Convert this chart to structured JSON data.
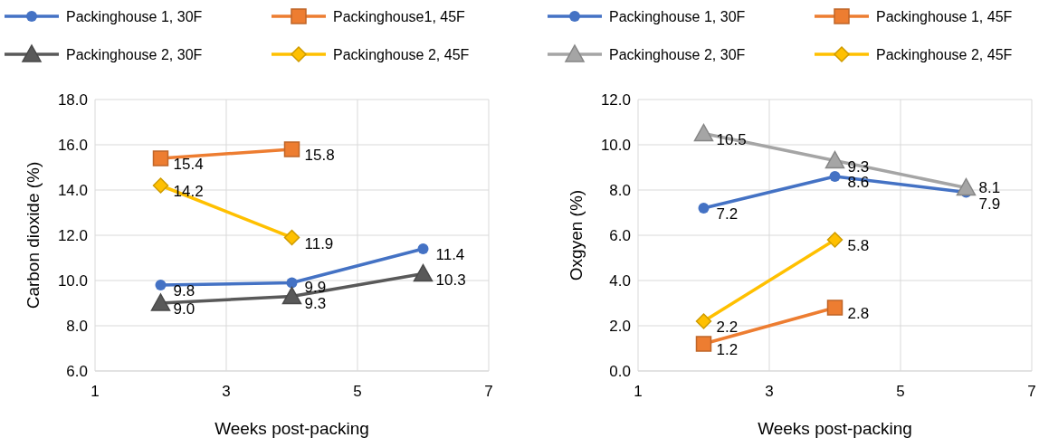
{
  "chart_data": [
    {
      "type": "line",
      "xlabel": "Weeks post-packing",
      "ylabel": "Carbon dioxide (%)",
      "xlim": [
        1,
        7
      ],
      "xticks": [
        1,
        3,
        5,
        7
      ],
      "ylim": [
        6,
        18
      ],
      "yticks": [
        {
          "value": 6,
          "label": "6.0"
        },
        {
          "value": 8,
          "label": "8.0"
        },
        {
          "value": 10,
          "label": "10.0"
        },
        {
          "value": 12,
          "label": "12.0"
        },
        {
          "value": 14,
          "label": "14.0"
        },
        {
          "value": 16,
          "label": "16.0"
        },
        {
          "value": 18,
          "label": "18.0"
        }
      ],
      "grid": true,
      "legend": "top",
      "data_labels": true,
      "series": [
        {
          "name": "Packinghouse 1, 30F",
          "color": "#4472c4",
          "marker": "circle",
          "x": [
            2,
            4,
            6
          ],
          "values": [
            9.8,
            9.9,
            11.4
          ]
        },
        {
          "name": "Packinghouse1, 45F",
          "color": "#ed7d31",
          "marker": "square",
          "x": [
            2,
            4
          ],
          "values": [
            15.4,
            15.8
          ]
        },
        {
          "name": "Packinghouse 2, 30F",
          "color": "#595959",
          "marker": "triangle",
          "x": [
            2,
            4,
            6
          ],
          "values": [
            9.0,
            9.3,
            10.3
          ],
          "value_labels": [
            "9.0",
            "9.3",
            "10.3"
          ]
        },
        {
          "name": "Packinghouse 2, 45F",
          "color": "#ffc000",
          "marker": "diamond",
          "x": [
            2,
            4
          ],
          "values": [
            14.2,
            11.9
          ]
        }
      ]
    },
    {
      "type": "line",
      "xlabel": "Weeks post-packing",
      "ylabel": "Oxgyen (%)",
      "xlim": [
        1,
        7
      ],
      "xticks": [
        1,
        3,
        5,
        7
      ],
      "ylim": [
        0,
        12
      ],
      "yticks": [
        {
          "value": 0,
          "label": "0.0"
        },
        {
          "value": 2,
          "label": "2.0"
        },
        {
          "value": 4,
          "label": "4.0"
        },
        {
          "value": 6,
          "label": "6.0"
        },
        {
          "value": 8,
          "label": "8.0"
        },
        {
          "value": 10,
          "label": "10.0"
        },
        {
          "value": 12,
          "label": "12.0"
        }
      ],
      "grid": true,
      "legend": "top",
      "data_labels": true,
      "series": [
        {
          "name": "Packinghouse 1, 30F",
          "color": "#4472c4",
          "marker": "circle",
          "x": [
            2,
            4,
            6
          ],
          "values": [
            7.2,
            8.6,
            7.9
          ]
        },
        {
          "name": "Packinghouse 1, 45F",
          "color": "#ed7d31",
          "marker": "square",
          "x": [
            2,
            4
          ],
          "values": [
            1.2,
            2.8
          ]
        },
        {
          "name": "Packinghouse 2, 30F",
          "color": "#a5a5a5",
          "marker": "triangle",
          "x": [
            2,
            4,
            6
          ],
          "values": [
            10.5,
            9.3,
            8.1
          ]
        },
        {
          "name": "Packinghouse 2, 45F",
          "color": "#ffc000",
          "marker": "diamond",
          "x": [
            2,
            4
          ],
          "values": [
            2.2,
            5.8
          ]
        }
      ]
    }
  ]
}
